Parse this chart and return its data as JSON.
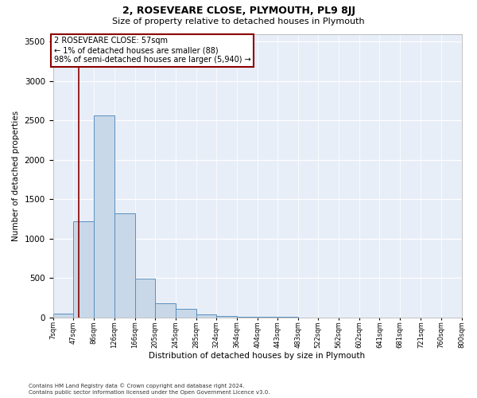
{
  "title1": "2, ROSEVEARE CLOSE, PLYMOUTH, PL9 8JJ",
  "title2": "Size of property relative to detached houses in Plymouth",
  "xlabel": "Distribution of detached houses by size in Plymouth",
  "ylabel": "Number of detached properties",
  "footnote1": "Contains HM Land Registry data © Crown copyright and database right 2024.",
  "footnote2": "Contains public sector information licensed under the Open Government Licence v3.0.",
  "annotation_line1": "2 ROSEVEARE CLOSE: 57sqm",
  "annotation_line2": "← 1% of detached houses are smaller (88)",
  "annotation_line3": "98% of semi-detached houses are larger (5,940) →",
  "bar_edges": [
    7,
    47,
    86,
    126,
    166,
    205,
    245,
    285,
    324,
    364,
    404,
    443,
    483,
    522,
    562,
    602,
    641,
    681,
    721,
    760,
    800
  ],
  "bar_values": [
    50,
    1220,
    2560,
    1320,
    490,
    185,
    115,
    40,
    20,
    10,
    5,
    5,
    3,
    3,
    2,
    2,
    2,
    2,
    1,
    1
  ],
  "property_size": 57,
  "bar_color": "#c8d8e8",
  "bar_edge_color": "#5a8fc0",
  "vline_color": "#8b0000",
  "annotation_box_edge": "#8b0000",
  "annotation_box_face": "white",
  "background_color": "#e8eef8",
  "grid_color": "#ffffff",
  "ylim": [
    0,
    3600
  ],
  "yticks": [
    0,
    500,
    1000,
    1500,
    2000,
    2500,
    3000,
    3500
  ]
}
